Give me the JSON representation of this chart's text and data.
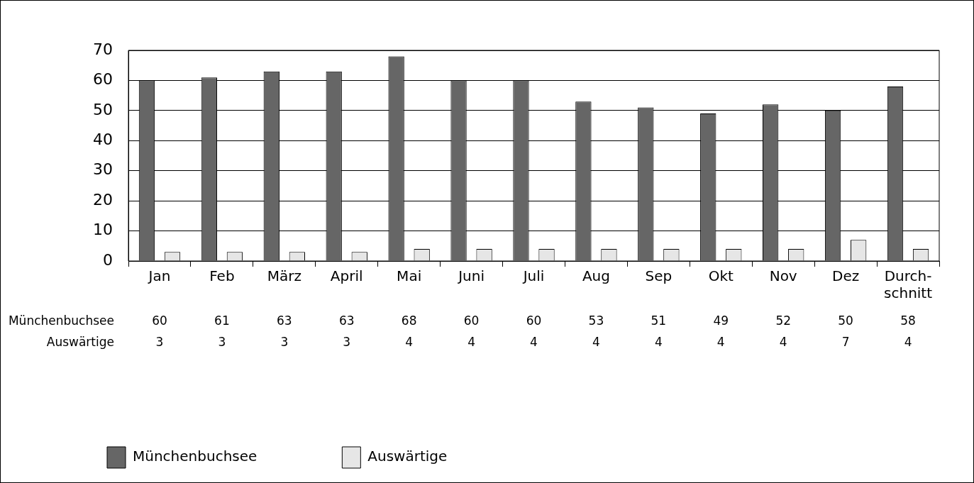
{
  "chart_data": {
    "type": "bar",
    "categories": [
      "Jan",
      "Feb",
      "März",
      "April",
      "Mai",
      "Juni",
      "Juli",
      "Aug",
      "Sep",
      "Okt",
      "Nov",
      "Dez",
      "Durch-\nschnitt"
    ],
    "series": [
      {
        "name": "Münchenbuchsee",
        "color": "#666666",
        "values": [
          60,
          61,
          63,
          63,
          68,
          60,
          60,
          53,
          51,
          49,
          52,
          50,
          58
        ]
      },
      {
        "name": "Auswärtige",
        "color": "#e6e6e6",
        "values": [
          3,
          3,
          3,
          3,
          4,
          4,
          4,
          4,
          4,
          4,
          4,
          7,
          4
        ]
      }
    ],
    "ylim": [
      0,
      70
    ],
    "yticks": [
      0,
      10,
      20,
      30,
      40,
      50,
      60,
      70
    ],
    "grid": "y",
    "legend": "bottom",
    "data_labels": true
  }
}
